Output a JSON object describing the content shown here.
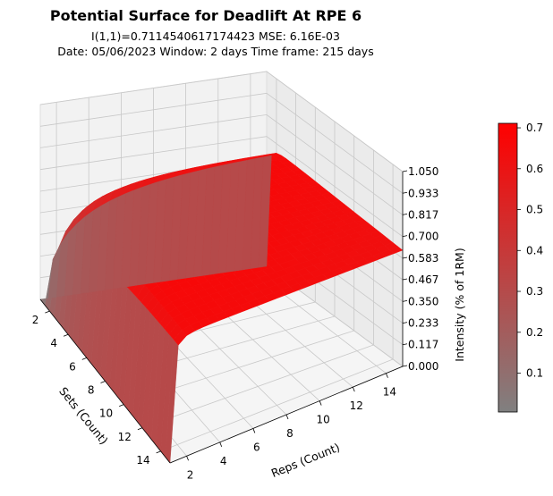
{
  "title": "Potential Surface for Deadlift At RPE 6",
  "subtitle_line1": "I(1,1)=0.7114540617174423 MSE: 6.16E-03",
  "subtitle_line2": "Date: 05/06/2023  Window: 2 days  Time frame: 215 days",
  "chart_data": {
    "type": "surface3d",
    "title": "Potential Surface for Deadlift At RPE 6",
    "xlabel": "Sets (Count)",
    "ylabel": "Reps (Count)",
    "zlabel": "Intensity (% of 1RM)",
    "x_ticks": [
      "2",
      "4",
      "6",
      "8",
      "10",
      "12",
      "14"
    ],
    "y_ticks": [
      "2",
      "4",
      "6",
      "8",
      "10",
      "12",
      "14"
    ],
    "z_ticks": [
      "0.000",
      "0.117",
      "0.233",
      "0.350",
      "0.467",
      "0.583",
      "0.700",
      "0.817",
      "0.933",
      "1.050"
    ],
    "xlim": [
      1,
      15
    ],
    "ylim": [
      1,
      15
    ],
    "zlim": [
      0,
      1.05
    ],
    "surface_peak_value": 0.7114540617174423,
    "colormap": [
      "#808080",
      "#ff0000"
    ],
    "colorbar": {
      "range": [
        0.005,
        0.711
      ],
      "ticks": [
        "0.1",
        "0.2",
        "0.3",
        "0.4",
        "0.5",
        "0.6",
        "0.7"
      ]
    }
  }
}
